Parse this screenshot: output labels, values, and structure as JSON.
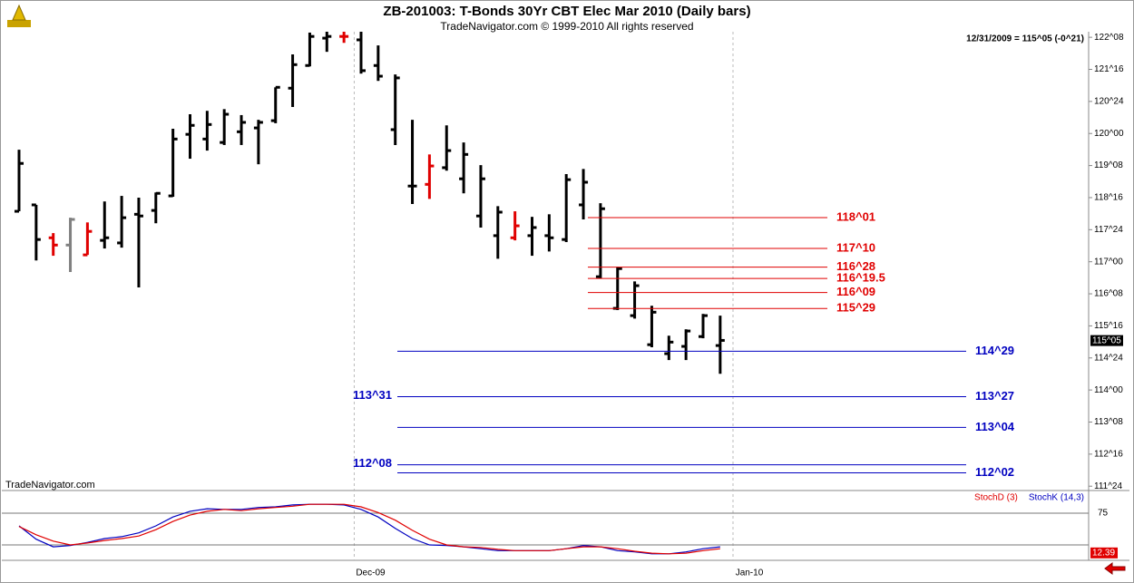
{
  "chart_data": [
    {
      "type": "ohlc",
      "title": "ZB-201003:  T-Bonds 30Yr CBT Elec Mar 2010  (Daily bars)",
      "subtitle": "TradeNavigator.com © 1999-2010 All rights reserved",
      "info": "12/31/2009 = 115^05 (-0^21)",
      "watermark": "TradeNavigator.com",
      "open": [
        118.18,
        118.33,
        117.56,
        117.39,
        117.16,
        117.5,
        117.44,
        118.11,
        118.2,
        118.54,
        119.98,
        119.87,
        119.79,
        120.04,
        120.13,
        120.3,
        121.06,
        121.59,
        122.23,
        122.27,
        122.19,
        121.59,
        120.09,
        118.77,
        118.81,
        119.2,
        118.94,
        118.07,
        117.61,
        117.56,
        117.61,
        117.61,
        117.52,
        118.33,
        116.65,
        115.91,
        115.74,
        115.06,
        114.85,
        115.02,
        115.25,
        115.04
      ],
      "high": [
        119.62,
        118.33,
        117.67,
        118.03,
        117.92,
        118.41,
        118.54,
        118.5,
        118.62,
        120.11,
        120.45,
        120.53,
        120.57,
        120.43,
        120.32,
        121.08,
        121.85,
        122.36,
        122.44,
        122.42,
        122.4,
        122.06,
        121.38,
        120.32,
        119.51,
        120.19,
        119.79,
        119.26,
        118.3,
        118.18,
        118.05,
        118.11,
        119.05,
        119.17,
        118.37,
        116.88,
        116.54,
        115.97,
        115.27,
        115.42,
        115.78,
        115.74
      ],
      "low": [
        118.18,
        117.03,
        117.14,
        116.76,
        117.16,
        117.31,
        117.33,
        116.4,
        117.9,
        118.52,
        119.41,
        119.6,
        119.73,
        119.73,
        119.28,
        120.24,
        120.62,
        121.57,
        121.91,
        122.12,
        121.4,
        121.23,
        119.73,
        118.35,
        118.47,
        119.13,
        118.6,
        117.8,
        117.07,
        117.5,
        117.14,
        117.24,
        117.46,
        117.99,
        116.61,
        115.87,
        115.67,
        115.0,
        114.7,
        114.7,
        115.21,
        114.38
      ],
      "close": [
        119.3,
        117.52,
        117.39,
        117.99,
        117.71,
        117.56,
        118.03,
        118.07,
        118.6,
        119.87,
        120.19,
        120.21,
        120.45,
        120.26,
        120.26,
        121.08,
        121.61,
        122.27,
        122.27,
        122.27,
        121.47,
        121.34,
        121.3,
        118.77,
        119.24,
        119.6,
        119.51,
        118.94,
        118.16,
        117.84,
        117.8,
        117.56,
        118.92,
        118.86,
        118.24,
        116.84,
        116.44,
        115.82,
        115.12,
        115.38,
        115.74,
        115.16
      ],
      "colors": [
        "#000",
        "#000",
        "#e00000",
        "#808080",
        "#e00000",
        "#000",
        "#000",
        "#000",
        "#000",
        "#000",
        "#000",
        "#000",
        "#000",
        "#000",
        "#000",
        "#000",
        "#000",
        "#000",
        "#000",
        "#e00000",
        "#000",
        "#000",
        "#000",
        "#000",
        "#e00000",
        "#000",
        "#000",
        "#000",
        "#000",
        "#e00000",
        "#000",
        "#000",
        "#000",
        "#000",
        "#000",
        "#000",
        "#000",
        "#000",
        "#000",
        "#000",
        "#000",
        "#000"
      ],
      "ylim": [
        111.67,
        122.38
      ],
      "yticks": [
        {
          "value": 122.25,
          "label": "122^08"
        },
        {
          "value": 121.5,
          "label": "121^16"
        },
        {
          "value": 120.75,
          "label": "120^24"
        },
        {
          "value": 120,
          "label": "120^00"
        },
        {
          "value": 119.25,
          "label": "119^08"
        },
        {
          "value": 118.5,
          "label": "118^16"
        },
        {
          "value": 117.75,
          "label": "117^24"
        },
        {
          "value": 117,
          "label": "117^00"
        },
        {
          "value": 116.25,
          "label": "116^08"
        },
        {
          "value": 115.5,
          "label": "115^16"
        },
        {
          "value": 114.75,
          "label": "114^24"
        },
        {
          "value": 114,
          "label": "114^00"
        },
        {
          "value": 113.25,
          "label": "113^08"
        },
        {
          "value": 112.5,
          "label": "112^16"
        },
        {
          "value": 111.75,
          "label": "111^24"
        }
      ],
      "xticks": [
        {
          "value": 19.6,
          "label": "Dec-09"
        },
        {
          "value": 41.75,
          "label": "Jan-10"
        }
      ],
      "last_price": {
        "value": 115.15625,
        "label": "115^05"
      },
      "red_levels": [
        {
          "value": 118.03125,
          "label": "118^01"
        },
        {
          "value": 117.3125,
          "label": "117^10"
        },
        {
          "value": 116.875,
          "label": "116^28"
        },
        {
          "value": 116.609,
          "label": "116^19.5"
        },
        {
          "value": 116.28125,
          "label": "116^09"
        },
        {
          "value": 115.90625,
          "label": "115^29"
        }
      ],
      "red_color": "#e00000",
      "blue_levels": [
        {
          "value": 114.90625,
          "label": "114^29"
        },
        {
          "value": 113.84375,
          "label": "113^27"
        },
        {
          "value": 113.125,
          "label": "113^04"
        },
        {
          "value": 112.0625,
          "label": "112^02"
        }
      ],
      "blue_left_levels": [
        {
          "value": 112.25,
          "label": "112^08"
        }
      ],
      "blue_annotations": [
        {
          "value": 113.97,
          "label": "113^31"
        }
      ],
      "blue_color": "#0000c0"
    },
    {
      "type": "line",
      "series": [
        {
          "name": "StochD (3)",
          "color": "#e00000",
          "values": [
            54,
            41,
            31,
            25,
            28,
            32,
            35,
            39,
            49,
            62,
            72,
            78,
            81,
            79,
            82,
            84,
            86,
            89,
            89,
            89,
            85,
            76,
            64,
            48,
            34,
            25,
            22,
            21,
            18,
            16,
            16,
            16,
            19,
            22,
            22,
            19,
            15,
            12,
            11,
            12,
            16,
            19
          ]
        },
        {
          "name": "StochK (14,3)",
          "color": "#0000c0",
          "values": [
            55,
            34,
            22,
            24,
            29,
            35,
            38,
            44,
            55,
            69,
            78,
            82,
            81,
            81,
            84,
            85,
            88,
            89,
            89,
            88,
            81,
            69,
            51,
            35,
            25,
            24,
            22,
            19,
            16,
            16,
            16,
            16,
            19,
            24,
            22,
            16,
            14,
            11,
            11,
            14,
            19,
            22
          ]
        }
      ],
      "ylim": [
        0,
        100
      ],
      "yticks": [
        75
      ],
      "levels": [
        75,
        25
      ],
      "last_value": 12.39
    }
  ]
}
